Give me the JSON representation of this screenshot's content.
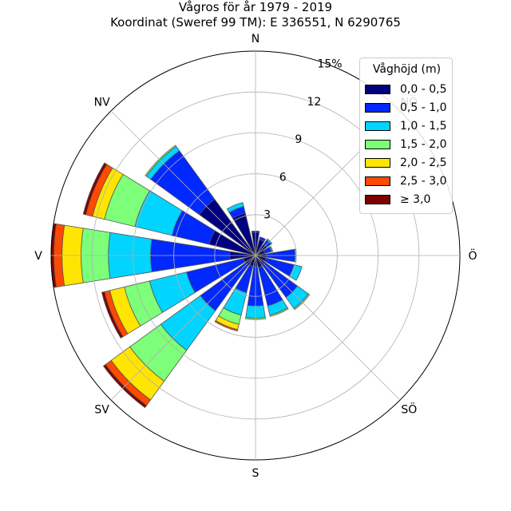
{
  "title_line1": "Vågros för år 1979 - 2019",
  "title_line2": "Koordinat (Sweref 99 TM): E 336551, N 6290765",
  "chart_data": {
    "type": "polar-stacked-bar",
    "unit": "%",
    "rmax": 15,
    "radial_ticks": [
      3,
      6,
      9,
      12,
      15
    ],
    "radial_tick_labels": [
      "3",
      "6",
      "9",
      "12",
      "15%"
    ],
    "direction_labels": [
      "N",
      "NÖ",
      "Ö",
      "SÖ",
      "S",
      "SV",
      "V",
      "NV"
    ],
    "legend_title": "Våghöjd (m)",
    "legend_placement": "upper-right",
    "bins": [
      {
        "label": "0,0 - 0,5",
        "color": "#00007f"
      },
      {
        "label": "0,5 - 1,0",
        "color": "#0028ff"
      },
      {
        "label": "1,0 - 1,5",
        "color": "#00d4ff"
      },
      {
        "label": "1,5 - 2,0",
        "color": "#7dff7a"
      },
      {
        "label": "2,0 - 2,5",
        "color": "#ffe500"
      },
      {
        "label": "2,5 - 3,0",
        "color": "#ff4800"
      },
      {
        "label": "≥ 3,0",
        "color": "#7f0000"
      }
    ],
    "directions_deg": [
      0,
      22.5,
      45,
      67.5,
      90,
      112.5,
      135,
      157.5,
      180,
      202.5,
      225,
      247.5,
      270,
      292.5,
      315,
      337.5
    ],
    "cumulative": [
      [
        1.7,
        1.8,
        1.8,
        1.8,
        1.8,
        1.8,
        1.8
      ],
      [
        1.2,
        1.4,
        1.4,
        1.4,
        1.4,
        1.4,
        1.4
      ],
      [
        1.0,
        1.4,
        1.5,
        1.5,
        1.5,
        1.5,
        1.5
      ],
      [
        0.7,
        1.2,
        1.3,
        1.3,
        1.3,
        1.3,
        1.3
      ],
      [
        0.8,
        2.9,
        3.0,
        3.0,
        3.0,
        3.0,
        3.0
      ],
      [
        0.8,
        2.9,
        3.5,
        3.5,
        3.5,
        3.5,
        3.5
      ],
      [
        0.9,
        3.8,
        4.8,
        4.9,
        4.9,
        4.9,
        4.9
      ],
      [
        0.9,
        3.8,
        4.5,
        4.6,
        4.6,
        4.6,
        4.6
      ],
      [
        0.8,
        3.7,
        4.6,
        4.7,
        4.7,
        4.7,
        4.7
      ],
      [
        0.8,
        2.8,
        4.5,
        5.2,
        5.6,
        5.7,
        5.7
      ],
      [
        0.9,
        5.0,
        8.6,
        11.4,
        13.1,
        13.6,
        13.8
      ],
      [
        0.9,
        5.2,
        8.0,
        9.9,
        11.0,
        11.4,
        11.6
      ],
      [
        1.9,
        7.7,
        10.8,
        12.8,
        14.2,
        14.8,
        15.0
      ],
      [
        3.5,
        6.3,
        9.1,
        11.4,
        12.3,
        12.8,
        13.0
      ],
      [
        5.1,
        9.5,
        9.9,
        10.0,
        10.0,
        10.0,
        10.0
      ],
      [
        3.2,
        3.7,
        4.0,
        4.0,
        4.0,
        4.0,
        4.0
      ]
    ]
  }
}
